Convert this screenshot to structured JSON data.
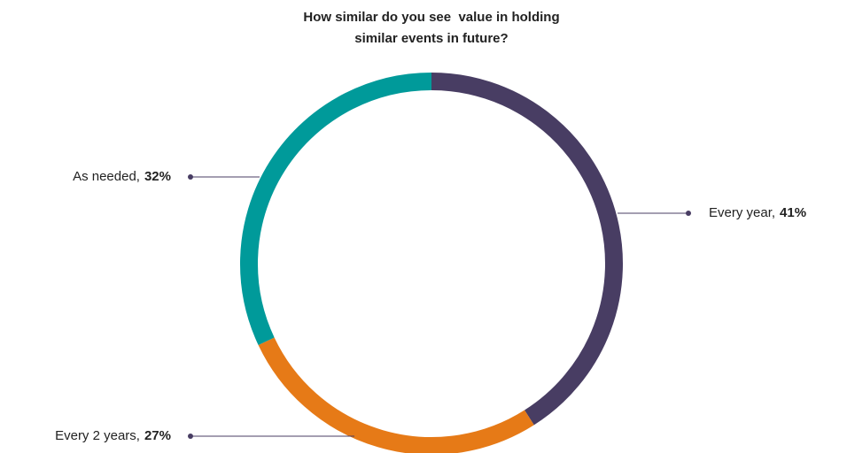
{
  "chart_data": {
    "type": "donut",
    "title": [
      "How similar do you see  value in holding",
      "similar events in future?"
    ],
    "categories": [
      "Every year,",
      "Every 2 years,",
      "As needed,"
    ],
    "values": [
      41,
      27,
      32
    ],
    "value_labels": [
      "41%",
      "27%",
      "32%"
    ],
    "colors": [
      "#483d63",
      "#e67a17",
      "#009a9a"
    ]
  }
}
